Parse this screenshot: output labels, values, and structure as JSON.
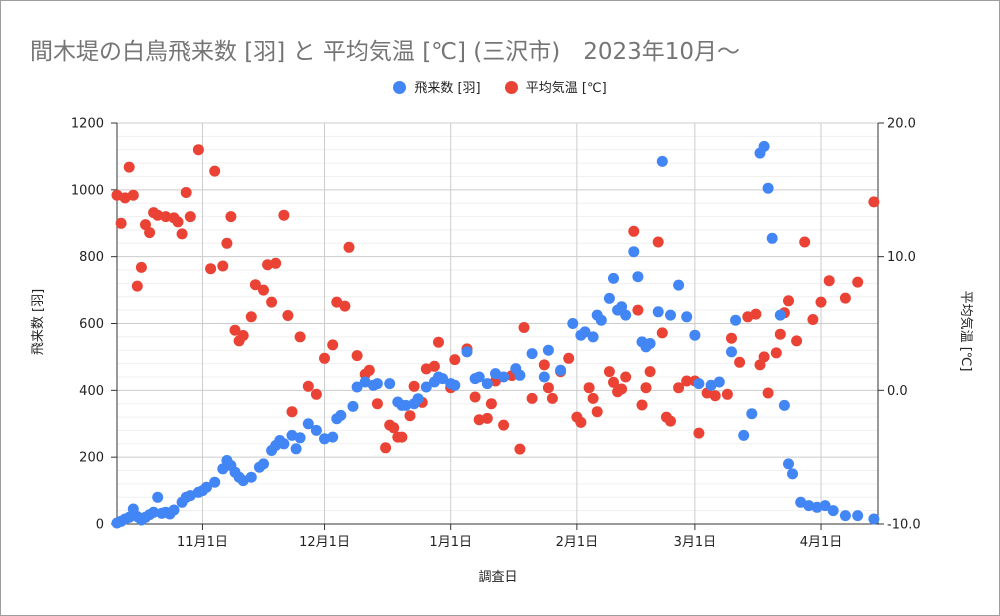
{
  "chart_data": {
    "type": "scatter",
    "title": "間木堤の白鳥飛来数 [羽] と 平均気温 [℃] (三沢市)　2023年10月～",
    "xlabel": "調査日",
    "ylabel_left": "飛来数 [羽]",
    "ylabel_right": "平均気温 [℃]",
    "x_tick_labels": [
      "11月1日",
      "12月1日",
      "1月1日",
      "2月1日",
      "3月1日",
      "4月1日"
    ],
    "x_ticks": [
      "2023-11-01",
      "2023-12-01",
      "2024-01-01",
      "2024-02-01",
      "2024-03-01",
      "2024-04-01"
    ],
    "xlim": [
      "2023-10-11",
      "2024-04-15"
    ],
    "ylim_left": [
      0,
      1200
    ],
    "y_ticks_left": [
      "0",
      "200",
      "400",
      "600",
      "800",
      "1000",
      "1200"
    ],
    "ylim_right": [
      -10,
      20
    ],
    "y_ticks_right": [
      "-10.0",
      "0.0",
      "10.0",
      "20.0"
    ],
    "grid": true,
    "legend_position": "top",
    "series": [
      {
        "name": "飛来数 [羽]",
        "color": "#4285F4",
        "axis": "left",
        "points": [
          [
            "2023-10-11",
            3
          ],
          [
            "2023-10-12",
            8
          ],
          [
            "2023-10-13",
            15
          ],
          [
            "2023-10-14",
            20
          ],
          [
            "2023-10-15",
            45
          ],
          [
            "2023-10-16",
            22
          ],
          [
            "2023-10-17",
            12
          ],
          [
            "2023-10-18",
            20
          ],
          [
            "2023-10-19",
            28
          ],
          [
            "2023-10-20",
            35
          ],
          [
            "2023-10-21",
            80
          ],
          [
            "2023-10-22",
            32
          ],
          [
            "2023-10-23",
            35
          ],
          [
            "2023-10-24",
            30
          ],
          [
            "2023-10-25",
            42
          ],
          [
            "2023-10-27",
            65
          ],
          [
            "2023-10-28",
            80
          ],
          [
            "2023-10-29",
            85
          ],
          [
            "2023-10-31",
            95
          ],
          [
            "2023-11-01",
            100
          ],
          [
            "2023-11-02",
            110
          ],
          [
            "2023-11-04",
            125
          ],
          [
            "2023-11-06",
            165
          ],
          [
            "2023-11-07",
            190
          ],
          [
            "2023-11-08",
            175
          ],
          [
            "2023-11-09",
            155
          ],
          [
            "2023-11-10",
            140
          ],
          [
            "2023-11-11",
            130
          ],
          [
            "2023-11-13",
            140
          ],
          [
            "2023-11-15",
            170
          ],
          [
            "2023-11-16",
            180
          ],
          [
            "2023-11-18",
            220
          ],
          [
            "2023-11-19",
            235
          ],
          [
            "2023-11-20",
            250
          ],
          [
            "2023-11-21",
            240
          ],
          [
            "2023-11-23",
            265
          ],
          [
            "2023-11-24",
            225
          ],
          [
            "2023-11-25",
            258
          ],
          [
            "2023-11-27",
            300
          ],
          [
            "2023-11-29",
            280
          ],
          [
            "2023-12-01",
            255
          ],
          [
            "2023-12-03",
            260
          ],
          [
            "2023-12-04",
            315
          ],
          [
            "2023-12-05",
            325
          ],
          [
            "2023-12-08",
            352
          ],
          [
            "2023-12-09",
            410
          ],
          [
            "2023-12-11",
            425
          ],
          [
            "2023-12-13",
            415
          ],
          [
            "2023-12-14",
            420
          ],
          [
            "2023-12-17",
            420
          ],
          [
            "2023-12-19",
            365
          ],
          [
            "2023-12-20",
            355
          ],
          [
            "2023-12-21",
            355
          ],
          [
            "2023-12-23",
            360
          ],
          [
            "2023-12-24",
            375
          ],
          [
            "2023-12-26",
            410
          ],
          [
            "2023-12-28",
            425
          ],
          [
            "2023-12-29",
            440
          ],
          [
            "2023-12-30",
            435
          ],
          [
            "2024-01-01",
            420
          ],
          [
            "2024-01-02",
            415
          ],
          [
            "2024-01-05",
            515
          ],
          [
            "2024-01-07",
            435
          ],
          [
            "2024-01-08",
            440
          ],
          [
            "2024-01-10",
            420
          ],
          [
            "2024-01-12",
            450
          ],
          [
            "2024-01-14",
            440
          ],
          [
            "2024-01-17",
            465
          ],
          [
            "2024-01-18",
            445
          ],
          [
            "2024-01-21",
            510
          ],
          [
            "2024-01-24",
            440
          ],
          [
            "2024-01-25",
            520
          ],
          [
            "2024-01-28",
            460
          ],
          [
            "2024-01-31",
            600
          ],
          [
            "2024-02-02",
            565
          ],
          [
            "2024-02-03",
            575
          ],
          [
            "2024-02-05",
            560
          ],
          [
            "2024-02-06",
            625
          ],
          [
            "2024-02-07",
            610
          ],
          [
            "2024-02-09",
            675
          ],
          [
            "2024-02-10",
            735
          ],
          [
            "2024-02-11",
            640
          ],
          [
            "2024-02-12",
            650
          ],
          [
            "2024-02-13",
            625
          ],
          [
            "2024-02-15",
            815
          ],
          [
            "2024-02-16",
            740
          ],
          [
            "2024-02-17",
            545
          ],
          [
            "2024-02-18",
            530
          ],
          [
            "2024-02-19",
            540
          ],
          [
            "2024-02-21",
            635
          ],
          [
            "2024-02-22",
            1085
          ],
          [
            "2024-02-24",
            625
          ],
          [
            "2024-02-26",
            715
          ],
          [
            "2024-02-28",
            620
          ],
          [
            "2024-03-01",
            565
          ],
          [
            "2024-03-02",
            420
          ],
          [
            "2024-03-05",
            415
          ],
          [
            "2024-03-07",
            425
          ],
          [
            "2024-03-10",
            515
          ],
          [
            "2024-03-11",
            610
          ],
          [
            "2024-03-13",
            265
          ],
          [
            "2024-03-15",
            330
          ],
          [
            "2024-03-17",
            1110
          ],
          [
            "2024-03-18",
            1130
          ],
          [
            "2024-03-19",
            1005
          ],
          [
            "2024-03-20",
            855
          ],
          [
            "2024-03-22",
            625
          ],
          [
            "2024-03-23",
            355
          ],
          [
            "2024-03-24",
            180
          ],
          [
            "2024-03-25",
            150
          ],
          [
            "2024-03-27",
            65
          ],
          [
            "2024-03-29",
            55
          ],
          [
            "2024-03-31",
            50
          ],
          [
            "2024-04-02",
            55
          ],
          [
            "2024-04-04",
            40
          ],
          [
            "2024-04-07",
            25
          ],
          [
            "2024-04-10",
            25
          ],
          [
            "2024-04-14",
            15
          ]
        ]
      },
      {
        "name": "平均気温 [℃]",
        "color": "#EA4335",
        "axis": "right",
        "points": [
          [
            "2023-10-11",
            14.6
          ],
          [
            "2023-10-12",
            12.5
          ],
          [
            "2023-10-13",
            14.4
          ],
          [
            "2023-10-14",
            16.7
          ],
          [
            "2023-10-15",
            14.6
          ],
          [
            "2023-10-16",
            7.8
          ],
          [
            "2023-10-17",
            9.2
          ],
          [
            "2023-10-18",
            12.4
          ],
          [
            "2023-10-19",
            11.8
          ],
          [
            "2023-10-20",
            13.3
          ],
          [
            "2023-10-21",
            13.1
          ],
          [
            "2023-10-23",
            13.0
          ],
          [
            "2023-10-25",
            12.9
          ],
          [
            "2023-10-26",
            12.6
          ],
          [
            "2023-10-27",
            11.7
          ],
          [
            "2023-10-28",
            14.8
          ],
          [
            "2023-10-29",
            13.0
          ],
          [
            "2023-10-31",
            18.0
          ],
          [
            "2023-11-03",
            9.1
          ],
          [
            "2023-11-04",
            16.4
          ],
          [
            "2023-11-06",
            9.3
          ],
          [
            "2023-11-07",
            11.0
          ],
          [
            "2023-11-08",
            13.0
          ],
          [
            "2023-11-09",
            4.5
          ],
          [
            "2023-11-10",
            3.7
          ],
          [
            "2023-11-11",
            4.1
          ],
          [
            "2023-11-13",
            5.5
          ],
          [
            "2023-11-14",
            7.9
          ],
          [
            "2023-11-16",
            7.5
          ],
          [
            "2023-11-17",
            9.4
          ],
          [
            "2023-11-18",
            6.6
          ],
          [
            "2023-11-19",
            9.5
          ],
          [
            "2023-11-21",
            13.1
          ],
          [
            "2023-11-22",
            5.6
          ],
          [
            "2023-11-23",
            -1.6
          ],
          [
            "2023-11-25",
            4.0
          ],
          [
            "2023-11-27",
            0.3
          ],
          [
            "2023-11-29",
            -0.3
          ],
          [
            "2023-12-01",
            2.4
          ],
          [
            "2023-12-03",
            3.4
          ],
          [
            "2023-12-04",
            6.6
          ],
          [
            "2023-12-06",
            6.3
          ],
          [
            "2023-12-07",
            10.7
          ],
          [
            "2023-12-09",
            2.6
          ],
          [
            "2023-12-11",
            1.2
          ],
          [
            "2023-12-12",
            1.5
          ],
          [
            "2023-12-14",
            -1.0
          ],
          [
            "2023-12-16",
            -4.3
          ],
          [
            "2023-12-17",
            -2.6
          ],
          [
            "2023-12-18",
            -2.8
          ],
          [
            "2023-12-19",
            -3.5
          ],
          [
            "2023-12-20",
            -3.5
          ],
          [
            "2023-12-22",
            -1.9
          ],
          [
            "2023-12-23",
            0.3
          ],
          [
            "2023-12-25",
            -0.9
          ],
          [
            "2023-12-26",
            1.6
          ],
          [
            "2023-12-28",
            1.8
          ],
          [
            "2023-12-29",
            3.6
          ],
          [
            "2024-01-01",
            0.2
          ],
          [
            "2024-01-02",
            2.3
          ],
          [
            "2024-01-05",
            3.1
          ],
          [
            "2024-01-07",
            -0.5
          ],
          [
            "2024-01-08",
            -2.2
          ],
          [
            "2024-01-10",
            -2.1
          ],
          [
            "2024-01-11",
            -1.0
          ],
          [
            "2024-01-12",
            0.7
          ],
          [
            "2024-01-14",
            -2.6
          ],
          [
            "2024-01-16",
            1.1
          ],
          [
            "2024-01-18",
            -4.4
          ],
          [
            "2024-01-19",
            4.7
          ],
          [
            "2024-01-21",
            -0.6
          ],
          [
            "2024-01-24",
            1.9
          ],
          [
            "2024-01-25",
            0.2
          ],
          [
            "2024-01-26",
            -0.6
          ],
          [
            "2024-01-28",
            1.4
          ],
          [
            "2024-01-30",
            2.4
          ],
          [
            "2024-02-01",
            -2.0
          ],
          [
            "2024-02-02",
            -2.4
          ],
          [
            "2024-02-04",
            0.2
          ],
          [
            "2024-02-05",
            -0.6
          ],
          [
            "2024-02-06",
            -1.6
          ],
          [
            "2024-02-09",
            1.4
          ],
          [
            "2024-02-10",
            0.6
          ],
          [
            "2024-02-11",
            -0.1
          ],
          [
            "2024-02-12",
            0.1
          ],
          [
            "2024-02-13",
            1.0
          ],
          [
            "2024-02-15",
            11.9
          ],
          [
            "2024-02-16",
            6.0
          ],
          [
            "2024-02-17",
            -1.1
          ],
          [
            "2024-02-18",
            0.2
          ],
          [
            "2024-02-19",
            1.4
          ],
          [
            "2024-02-21",
            11.1
          ],
          [
            "2024-02-22",
            4.3
          ],
          [
            "2024-02-23",
            -2.0
          ],
          [
            "2024-02-24",
            -2.3
          ],
          [
            "2024-02-26",
            0.2
          ],
          [
            "2024-02-28",
            0.7
          ],
          [
            "2024-03-01",
            0.7
          ],
          [
            "2024-03-02",
            -3.2
          ],
          [
            "2024-03-04",
            -0.2
          ],
          [
            "2024-03-06",
            -0.4
          ],
          [
            "2024-03-09",
            -0.3
          ],
          [
            "2024-03-10",
            3.9
          ],
          [
            "2024-03-12",
            2.1
          ],
          [
            "2024-03-14",
            5.5
          ],
          [
            "2024-03-16",
            5.7
          ],
          [
            "2024-03-17",
            1.9
          ],
          [
            "2024-03-18",
            2.5
          ],
          [
            "2024-03-19",
            -0.2
          ],
          [
            "2024-03-21",
            2.8
          ],
          [
            "2024-03-22",
            4.2
          ],
          [
            "2024-03-23",
            5.8
          ],
          [
            "2024-03-24",
            6.7
          ],
          [
            "2024-03-26",
            3.7
          ],
          [
            "2024-03-28",
            11.1
          ],
          [
            "2024-03-30",
            5.3
          ],
          [
            "2024-04-01",
            6.6
          ],
          [
            "2024-04-03",
            8.2
          ],
          [
            "2024-04-07",
            6.9
          ],
          [
            "2024-04-10",
            8.1
          ],
          [
            "2024-04-14",
            14.1
          ]
        ]
      }
    ]
  }
}
